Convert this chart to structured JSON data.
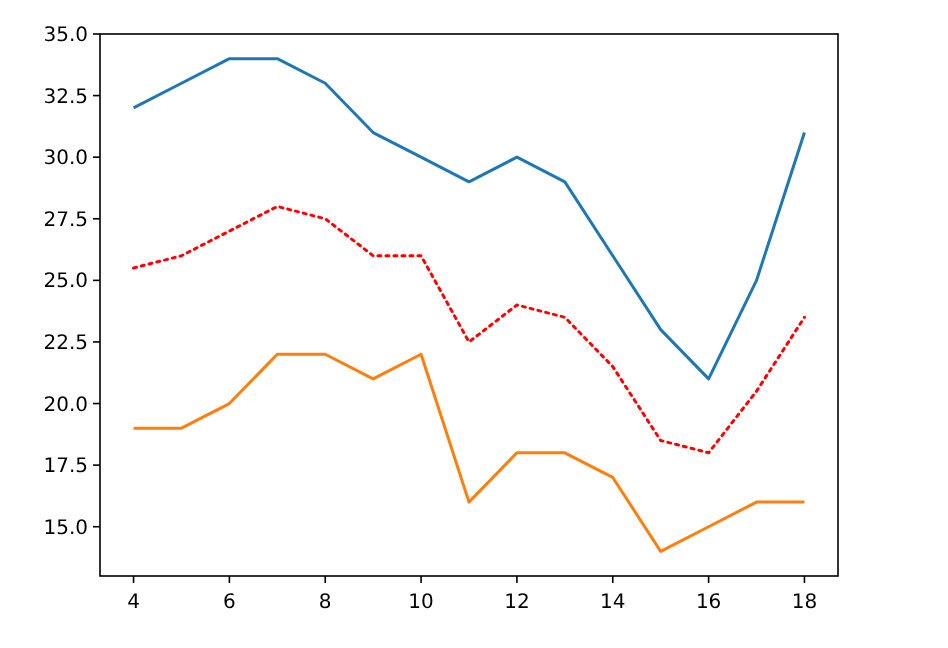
{
  "chart_data": {
    "type": "line",
    "x": [
      4,
      5,
      6,
      7,
      8,
      9,
      10,
      11,
      12,
      13,
      14,
      15,
      16,
      17,
      18
    ],
    "series": [
      {
        "color": "#1f77b4",
        "line_style": "solid",
        "values": [
          32,
          33,
          34,
          34,
          33,
          31,
          30,
          29,
          30,
          29,
          26,
          23,
          21,
          25,
          31
        ]
      },
      {
        "color": "#ff7f0e",
        "line_style": "solid",
        "values": [
          19,
          19,
          20,
          22,
          22,
          21,
          22,
          16,
          18,
          18,
          17,
          14,
          15,
          16,
          16
        ]
      },
      {
        "color": "#ff0000",
        "line_style": "dotted",
        "values": [
          25.5,
          26,
          27,
          28,
          27.5,
          26,
          26,
          22.5,
          24,
          23.5,
          21.5,
          18.5,
          18,
          20.5,
          23.5
        ]
      }
    ],
    "xlim": [
      3.3,
      18.7
    ],
    "xticks": [
      4,
      6,
      8,
      10,
      12,
      14,
      16,
      18
    ],
    "ylim": [
      13,
      35
    ],
    "yticks": [
      {
        "value": 15,
        "label": "15.0"
      },
      {
        "value": 17.5,
        "label": "17.5"
      },
      {
        "value": 20,
        "label": "20.0"
      },
      {
        "value": 22.5,
        "label": "22.5"
      },
      {
        "value": 25,
        "label": "25.0"
      },
      {
        "value": 27.5,
        "label": "27.5"
      },
      {
        "value": 30,
        "label": "30.0"
      },
      {
        "value": 32.5,
        "label": "32.5"
      },
      {
        "value": 35,
        "label": "35.0"
      }
    ],
    "grid": false,
    "marker": "none"
  }
}
